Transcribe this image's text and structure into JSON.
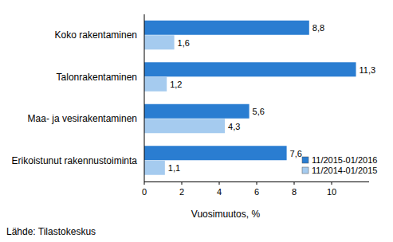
{
  "chart_data": {
    "type": "bar",
    "orientation": "horizontal",
    "categories": [
      "Koko rakentaminen",
      "Talonrakentaminen",
      "Maa- ja vesirakentaminen",
      "Erikoistunut rakennustoiminta"
    ],
    "series": [
      {
        "name": "11/2015-01/2016",
        "color": "#2a7dd1",
        "values": [
          8.8,
          11.3,
          5.6,
          7.6
        ],
        "value_labels": [
          "8,8",
          "11,3",
          "5,6",
          "7,6"
        ]
      },
      {
        "name": "11/2014-01/2015",
        "color": "#a5cbef",
        "values": [
          1.6,
          1.2,
          4.3,
          1.1
        ],
        "value_labels": [
          "1,6",
          "1,2",
          "4,3",
          "1,1"
        ]
      }
    ],
    "x_label": "Vuosimuutos, %",
    "xlim": [
      0,
      12
    ],
    "xticks": [
      0,
      2,
      4,
      6,
      8,
      10
    ],
    "grid": false,
    "data_labels": true,
    "legend": "lower right",
    "source": "Lähde: Tilastokeskus"
  }
}
